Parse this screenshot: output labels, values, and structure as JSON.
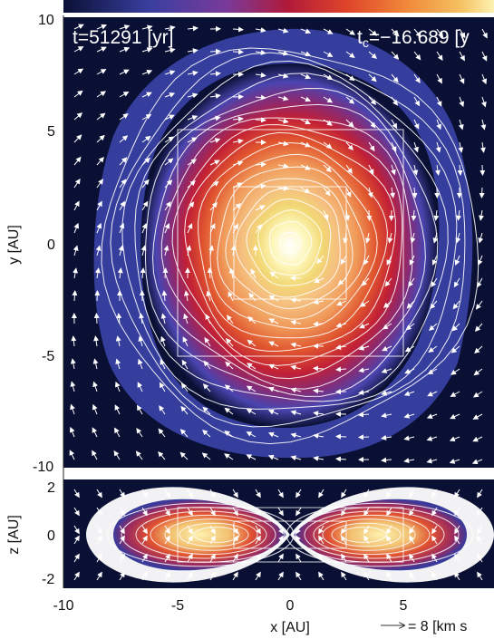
{
  "annotations": {
    "time": "t=51291 [yr]",
    "tc": "t",
    "tc_sub": "c",
    "tc_value": "=−16.689 [y"
  },
  "axes": {
    "x_label": "x [AU]",
    "y_label": "y [AU]",
    "z_label": "z [AU]",
    "x_ticks": [
      "-10",
      "-5",
      "0",
      "5"
    ],
    "y_ticks": [
      "10",
      "5",
      "0",
      "-5",
      "-10"
    ],
    "z_ticks": [
      "2",
      "0",
      "-2"
    ]
  },
  "legend": {
    "arrow_label": "= 8 [km s"
  },
  "colors": {
    "background_map": "#0a1034",
    "contour": "#ffffff",
    "colorbar": [
      "#0a1034",
      "#3a3fa0",
      "#7a3a9a",
      "#b01a3a",
      "#e0452a",
      "#f08a3a",
      "#f5c060",
      "#fdf2b0"
    ]
  }
}
